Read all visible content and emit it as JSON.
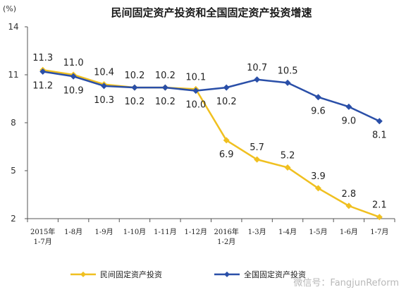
{
  "chart_data": {
    "type": "line",
    "title": "民间固定资产投资和全国固定资产投资增速",
    "unit": "(%)",
    "categories": [
      [
        "2015年",
        "1-7月"
      ],
      [
        "1-8月"
      ],
      [
        "1-9月"
      ],
      [
        "1-10月"
      ],
      [
        "1-11月"
      ],
      [
        "1-12月"
      ],
      [
        "2016年",
        "1-2月"
      ],
      [
        "1-3月"
      ],
      [
        "1-4月"
      ],
      [
        "1-5月"
      ],
      [
        "1-6月"
      ],
      [
        "1-7月"
      ]
    ],
    "ylim": [
      2,
      14
    ],
    "yticks": [
      2,
      5,
      8,
      11,
      14
    ],
    "grid": false,
    "legend_position": "bottom",
    "series": [
      {
        "name": "民间固定资产投资",
        "color": "#f0c020",
        "marker": "diamond",
        "values": [
          11.3,
          11.0,
          10.4,
          10.2,
          10.2,
          10.1,
          6.9,
          5.7,
          5.2,
          3.9,
          2.8,
          2.1
        ],
        "labels": [
          "11.3",
          "11.0",
          "10.4",
          "10.2",
          "10.2",
          "10.1",
          "6.9",
          "5.7",
          "5.2",
          "3.9",
          "2.8",
          "2.1"
        ],
        "label_side": [
          "above",
          "above",
          "above",
          "above",
          "above",
          "above",
          "below",
          "above",
          "above",
          "above",
          "above",
          "above"
        ]
      },
      {
        "name": "全国固定资产投资",
        "color": "#2a4fa8",
        "marker": "diamond",
        "values": [
          11.2,
          10.9,
          10.3,
          10.2,
          10.2,
          10.0,
          10.2,
          10.7,
          10.5,
          9.6,
          9.0,
          8.1
        ],
        "labels": [
          "11.2",
          "10.9",
          "10.3",
          "10.2",
          "10.2",
          "10.0",
          "10.2",
          "10.7",
          "10.5",
          "9.6",
          "9.0",
          "8.1"
        ],
        "label_side": [
          "below",
          "below",
          "below",
          "below",
          "below",
          "below",
          "below",
          "above",
          "above",
          "below",
          "below",
          "below"
        ]
      }
    ]
  },
  "watermark": "微信号：FangjunReform"
}
